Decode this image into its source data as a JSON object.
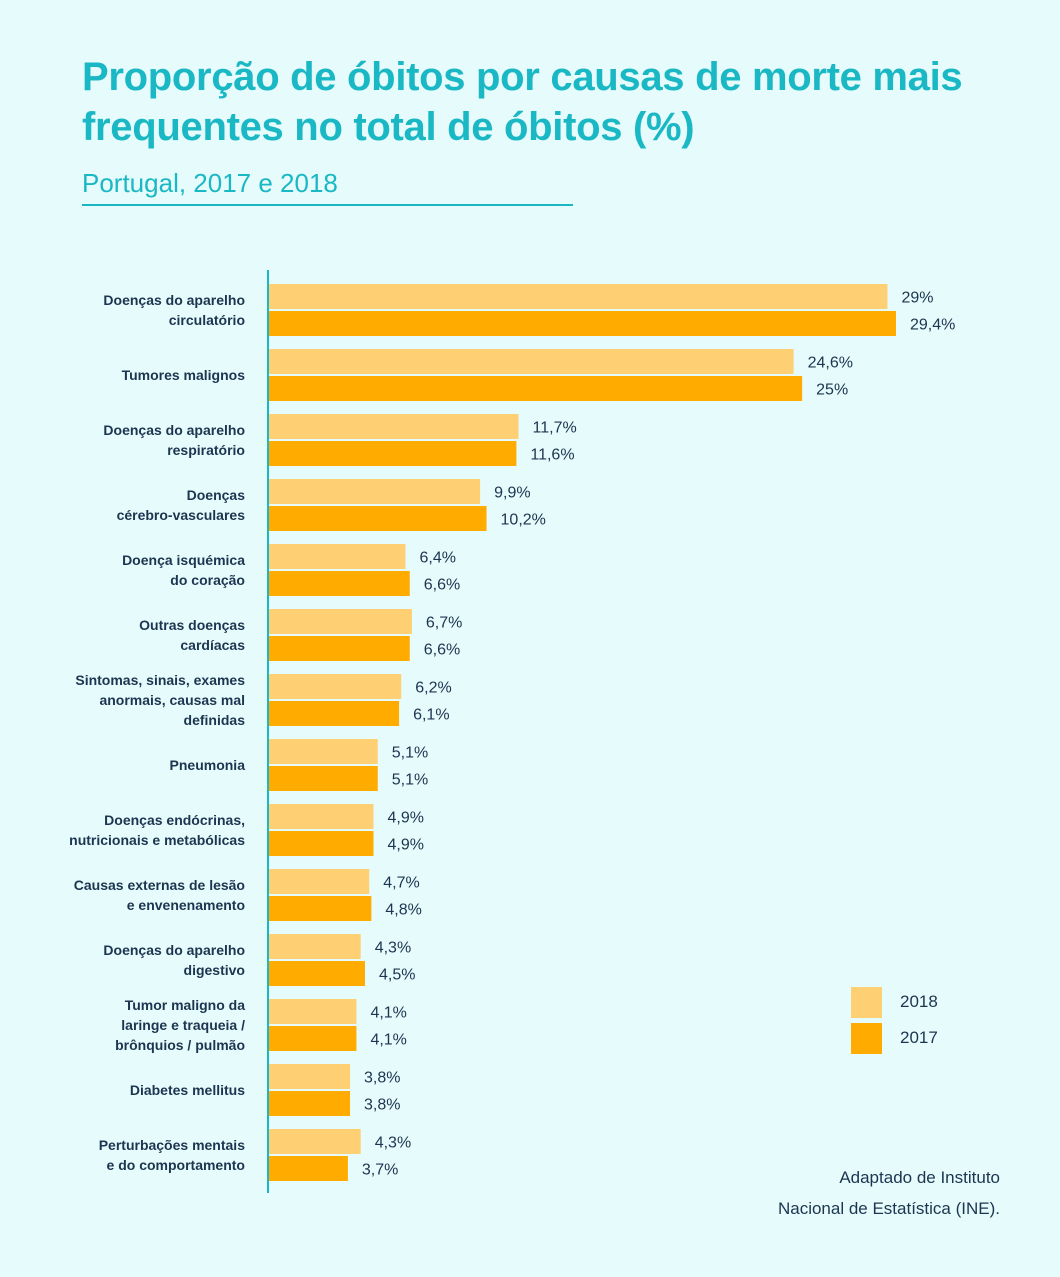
{
  "header": {
    "title": "Proporção de óbitos por causas de morte mais frequentes no total de óbitos (%)",
    "subtitle": "Portugal, 2017 e 2018"
  },
  "legend": [
    {
      "label": "2018",
      "color": "#ffd073"
    },
    {
      "label": "2017",
      "color": "#ffab00"
    }
  ],
  "source": {
    "line1": "Adaptado de Instituto",
    "line2": "Nacional de Estatística (INE)."
  },
  "chart_data": {
    "type": "bar",
    "orientation": "horizontal",
    "title": "Proporção de óbitos por causas de morte mais frequentes no total de óbitos (%)",
    "subtitle": "Portugal, 2017 e 2018",
    "categories": [
      [
        "Doenças do aparelho",
        "circulatório"
      ],
      [
        "Tumores malignos"
      ],
      [
        "Doenças do aparelho",
        "respiratório"
      ],
      [
        "Doenças",
        "cérebro-vasculares"
      ],
      [
        "Doença isquémica",
        "do coração"
      ],
      [
        "Outras doenças",
        "cardíacas"
      ],
      [
        "Sintomas, sinais, exames",
        "anormais, causas mal",
        "definidas"
      ],
      [
        "Pneumonia"
      ],
      [
        "Doenças endócrinas,",
        "nutricionais e metabólicas"
      ],
      [
        "Causas externas de lesão",
        "e envenenamento"
      ],
      [
        "Doenças do aparelho",
        "digestivo"
      ],
      [
        "Tumor maligno da",
        "laringe e traqueia /",
        "brônquios / pulmão"
      ],
      [
        "Diabetes mellitus"
      ],
      [
        "Perturbações mentais",
        "e do comportamento"
      ]
    ],
    "series": [
      {
        "name": "2018",
        "color": "#ffd073",
        "values": [
          29,
          24.6,
          11.7,
          9.9,
          6.4,
          6.7,
          6.2,
          5.1,
          4.9,
          4.7,
          4.3,
          4.1,
          3.8,
          4.3
        ],
        "labels": [
          "29%",
          "24,6%",
          "11,7%",
          "9,9%",
          "6,4%",
          "6,7%",
          "6,2%",
          "5,1%",
          "4,9%",
          "4,7%",
          "4,3%",
          "4,1%",
          "3,8%",
          "4,3%"
        ]
      },
      {
        "name": "2017",
        "color": "#ffab00",
        "values": [
          29.4,
          25,
          11.6,
          10.2,
          6.6,
          6.6,
          6.1,
          5.1,
          4.9,
          4.8,
          4.5,
          4.1,
          3.8,
          3.7
        ],
        "labels": [
          "29,4%",
          "25%",
          "11,6%",
          "10,2%",
          "6,6%",
          "6,6%",
          "6,1%",
          "5,1%",
          "4,9%",
          "4,8%",
          "4,5%",
          "4,1%",
          "3,8%",
          "3,7%"
        ]
      }
    ],
    "xlim": [
      0,
      29.4
    ],
    "grid": false,
    "legend_position": "bottom-right"
  }
}
